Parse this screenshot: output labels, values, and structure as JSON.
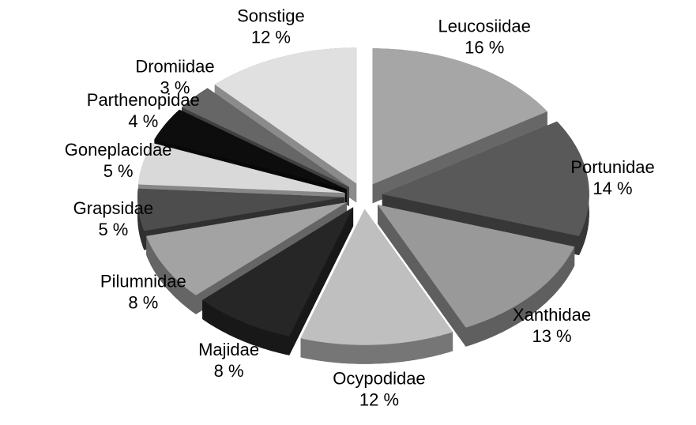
{
  "chart_data": {
    "type": "pie",
    "categories": [
      "Leucosiidae",
      "Portunidae",
      "Xanthidae",
      "Ocypodidae",
      "Majidae",
      "Pilumnidae",
      "Grapsidae",
      "Goneplacidae",
      "Parthenopidae",
      "Dromiidae",
      "Sonstige"
    ],
    "values": [
      16,
      14,
      13,
      12,
      8,
      8,
      5,
      5,
      4,
      3,
      12
    ],
    "value_labels": [
      "16 %",
      "14 %",
      "13 %",
      "12 %",
      "8 %",
      "8 %",
      "5 %",
      "5 %",
      "4 %",
      "3 %",
      "12 %"
    ],
    "colors": [
      "#a6a6a6",
      "#595959",
      "#999999",
      "#bfbfbf",
      "#262626",
      "#a3a3a3",
      "#4d4d4d",
      "#d9d9d9",
      "#0d0d0d",
      "#666666",
      "#e0e0e0"
    ]
  }
}
